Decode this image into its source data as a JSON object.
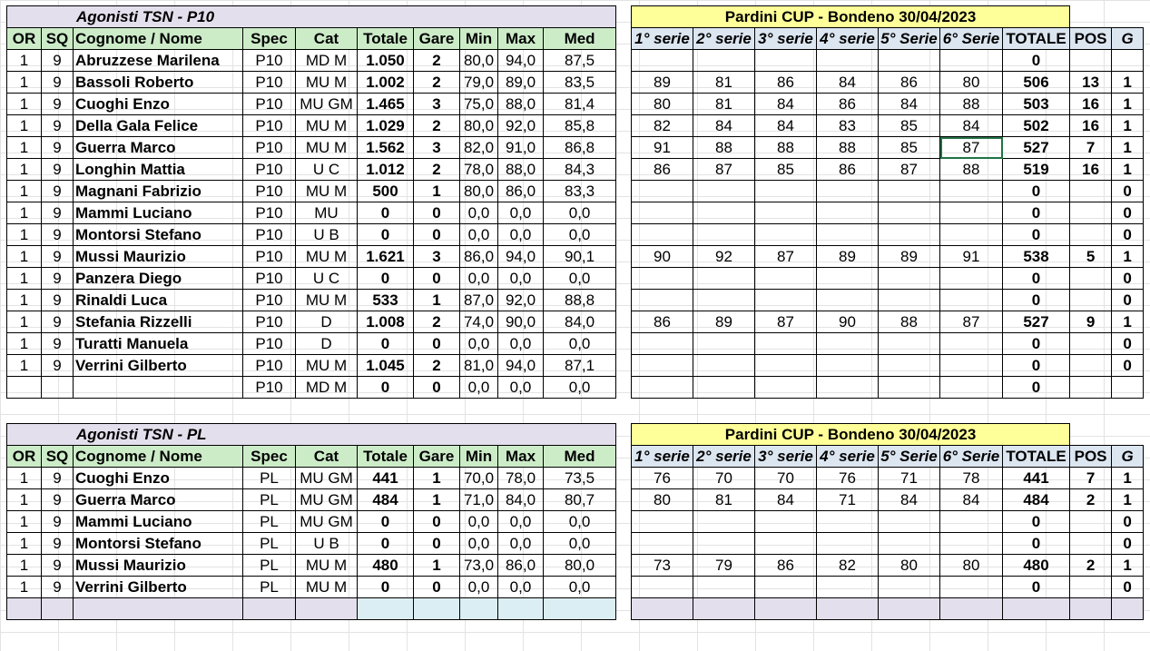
{
  "p10": {
    "title": "Agonisti TSN - P10",
    "headers": [
      "OR",
      "SQ",
      "Cognome / Nome",
      "Spec",
      "Cat",
      "Totale",
      "Gare",
      "Min",
      "Max",
      "Med"
    ],
    "rows": [
      [
        "1",
        "9",
        "Abruzzese Marilena",
        "P10",
        "MD M",
        "1.050",
        "2",
        "80,0",
        "94,0",
        "87,5"
      ],
      [
        "1",
        "9",
        "Bassoli Roberto",
        "P10",
        "MU M",
        "1.002",
        "2",
        "79,0",
        "89,0",
        "83,5"
      ],
      [
        "1",
        "9",
        "Cuoghi Enzo",
        "P10",
        "MU GM",
        "1.465",
        "3",
        "75,0",
        "88,0",
        "81,4"
      ],
      [
        "1",
        "9",
        "Della Gala Felice",
        "P10",
        "MU M",
        "1.029",
        "2",
        "80,0",
        "92,0",
        "85,8"
      ],
      [
        "1",
        "9",
        "Guerra Marco",
        "P10",
        "MU M",
        "1.562",
        "3",
        "82,0",
        "91,0",
        "86,8"
      ],
      [
        "1",
        "9",
        "Longhin Mattia",
        "P10",
        "U C",
        "1.012",
        "2",
        "78,0",
        "88,0",
        "84,3"
      ],
      [
        "1",
        "9",
        "Magnani Fabrizio",
        "P10",
        "MU M",
        "500",
        "1",
        "80,0",
        "86,0",
        "83,3"
      ],
      [
        "1",
        "9",
        "Mammi Luciano",
        "P10",
        "MU",
        "0",
        "0",
        "0,0",
        "0,0",
        "0,0"
      ],
      [
        "1",
        "9",
        "Montorsi Stefano",
        "P10",
        "U B",
        "0",
        "0",
        "0,0",
        "0,0",
        "0,0"
      ],
      [
        "1",
        "9",
        "Mussi Maurizio",
        "P10",
        "MU M",
        "1.621",
        "3",
        "86,0",
        "94,0",
        "90,1"
      ],
      [
        "1",
        "9",
        "Panzera Diego",
        "P10",
        "U C",
        "0",
        "0",
        "0,0",
        "0,0",
        "0,0"
      ],
      [
        "1",
        "9",
        "Rinaldi Luca",
        "P10",
        "MU M",
        "533",
        "1",
        "87,0",
        "92,0",
        "88,8"
      ],
      [
        "1",
        "9",
        "Stefania Rizzelli",
        "P10",
        "D",
        "1.008",
        "2",
        "74,0",
        "90,0",
        "84,0"
      ],
      [
        "1",
        "9",
        "Turatti Manuela",
        "P10",
        "D",
        "0",
        "0",
        "0,0",
        "0,0",
        "0,0"
      ],
      [
        "1",
        "9",
        "Verrini Gilberto",
        "P10",
        "MU M",
        "1.045",
        "2",
        "81,0",
        "94,0",
        "87,1"
      ],
      [
        "",
        "",
        "",
        "P10",
        "MD M",
        "0",
        "0",
        "0,0",
        "0,0",
        "0,0"
      ]
    ]
  },
  "cup1": {
    "title": "Pardini CUP - Bondeno 30/04/2023",
    "headers": [
      "1° serie",
      "2° serie",
      "3° serie",
      "4° serie",
      "5° Serie",
      "6° Serie",
      "TOTALE",
      "POS",
      "G"
    ],
    "rows": [
      [
        "",
        "",
        "",
        "",
        "",
        "",
        "0",
        "",
        ""
      ],
      [
        "89",
        "81",
        "86",
        "84",
        "86",
        "80",
        "506",
        "13",
        "1"
      ],
      [
        "80",
        "81",
        "84",
        "86",
        "84",
        "88",
        "503",
        "16",
        "1"
      ],
      [
        "82",
        "84",
        "84",
        "83",
        "85",
        "84",
        "502",
        "16",
        "1"
      ],
      [
        "91",
        "88",
        "88",
        "88",
        "85",
        "87",
        "527",
        "7",
        "1"
      ],
      [
        "86",
        "87",
        "85",
        "86",
        "87",
        "88",
        "519",
        "16",
        "1"
      ],
      [
        "",
        "",
        "",
        "",
        "",
        "",
        "0",
        "",
        "0"
      ],
      [
        "",
        "",
        "",
        "",
        "",
        "",
        "0",
        "",
        "0"
      ],
      [
        "",
        "",
        "",
        "",
        "",
        "",
        "0",
        "",
        "0"
      ],
      [
        "90",
        "92",
        "87",
        "89",
        "89",
        "91",
        "538",
        "5",
        "1"
      ],
      [
        "",
        "",
        "",
        "",
        "",
        "",
        "0",
        "",
        "0"
      ],
      [
        "",
        "",
        "",
        "",
        "",
        "",
        "0",
        "",
        "0"
      ],
      [
        "86",
        "89",
        "87",
        "90",
        "88",
        "87",
        "527",
        "9",
        "1"
      ],
      [
        "",
        "",
        "",
        "",
        "",
        "",
        "0",
        "",
        "0"
      ],
      [
        "",
        "",
        "",
        "",
        "",
        "",
        "0",
        "",
        "0"
      ],
      [
        "",
        "",
        "",
        "",
        "",
        "",
        "0",
        "",
        ""
      ]
    ]
  },
  "pl": {
    "title": "Agonisti TSN - PL",
    "headers": [
      "OR",
      "SQ",
      "Cognome / Nome",
      "Spec",
      "Cat",
      "Totale",
      "Gare",
      "Min",
      "Max",
      "Med"
    ],
    "rows": [
      [
        "1",
        "9",
        "Cuoghi Enzo",
        "PL",
        "MU GM",
        "441",
        "1",
        "70,0",
        "78,0",
        "73,5"
      ],
      [
        "1",
        "9",
        "Guerra Marco",
        "PL",
        "MU GM",
        "484",
        "1",
        "71,0",
        "84,0",
        "80,7"
      ],
      [
        "1",
        "9",
        "Mammi Luciano",
        "PL",
        "MU GM",
        "0",
        "0",
        "0,0",
        "0,0",
        "0,0"
      ],
      [
        "1",
        "9",
        "Montorsi Stefano",
        "PL",
        "U B",
        "0",
        "0",
        "0,0",
        "0,0",
        "0,0"
      ],
      [
        "1",
        "9",
        "Mussi Maurizio",
        "PL",
        "MU M",
        "480",
        "1",
        "73,0",
        "86,0",
        "80,0"
      ],
      [
        "1",
        "9",
        "Verrini Gilberto",
        "PL",
        "MU M",
        "0",
        "0",
        "0,0",
        "0,0",
        "0,0"
      ],
      [
        "",
        "",
        "",
        "",
        "",
        "",
        "",
        "",
        "",
        ""
      ]
    ]
  },
  "cup2": {
    "title": "Pardini CUP - Bondeno 30/04/2023",
    "headers": [
      "1° serie",
      "2° serie",
      "3° serie",
      "4° serie",
      "5° Serie",
      "6° Serie",
      "TOTALE",
      "POS",
      "G"
    ],
    "rows": [
      [
        "76",
        "70",
        "70",
        "76",
        "71",
        "78",
        "441",
        "7",
        "1"
      ],
      [
        "80",
        "81",
        "84",
        "71",
        "84",
        "84",
        "484",
        "2",
        "1"
      ],
      [
        "",
        "",
        "",
        "",
        "",
        "",
        "0",
        "",
        "0"
      ],
      [
        "",
        "",
        "",
        "",
        "",
        "",
        "0",
        "",
        "0"
      ],
      [
        "73",
        "79",
        "86",
        "82",
        "80",
        "80",
        "480",
        "2",
        "1"
      ],
      [
        "",
        "",
        "",
        "",
        "",
        "",
        "0",
        "",
        "0"
      ],
      [
        "",
        "",
        "",
        "",
        "",
        "",
        "",
        "",
        ""
      ]
    ]
  }
}
